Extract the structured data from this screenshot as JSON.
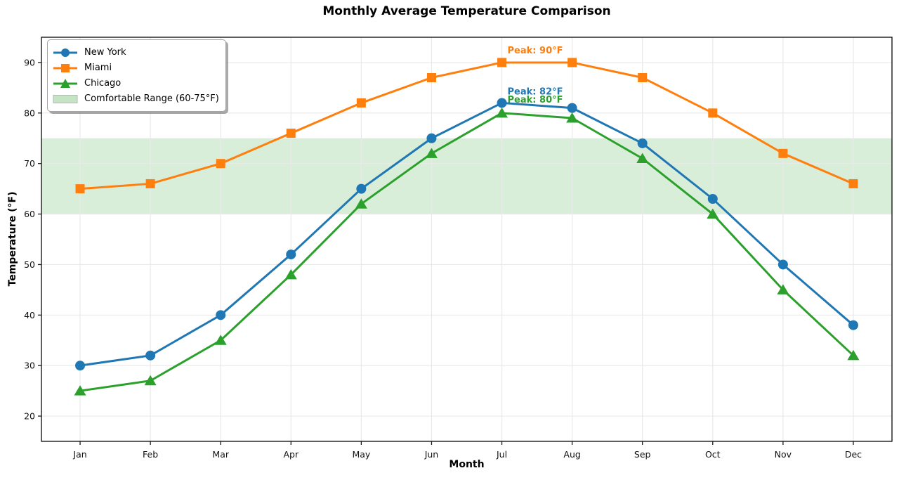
{
  "chart_data": {
    "type": "line",
    "title": "Monthly Average Temperature Comparison",
    "xlabel": "Month",
    "ylabel": "Temperature (°F)",
    "categories": [
      "Jan",
      "Feb",
      "Mar",
      "Apr",
      "May",
      "Jun",
      "Jul",
      "Aug",
      "Sep",
      "Oct",
      "Nov",
      "Dec"
    ],
    "y_ticks": [
      20,
      30,
      40,
      50,
      60,
      70,
      80,
      90
    ],
    "ylim": [
      15,
      95
    ],
    "x_margin": 0.55,
    "grid": true,
    "grid_color": "#e9e9e9",
    "spine_color": "#1a1a1a",
    "tick_label_color": "#111111",
    "series": [
      {
        "name": "New York",
        "color": "#1f77b4",
        "marker": "circle",
        "values": [
          30,
          32,
          40,
          52,
          65,
          75,
          82,
          81,
          74,
          63,
          50,
          38
        ]
      },
      {
        "name": "Miami",
        "color": "#ff7f0e",
        "marker": "square",
        "values": [
          65,
          66,
          70,
          76,
          82,
          87,
          90,
          90,
          87,
          80,
          72,
          66
        ]
      },
      {
        "name": "Chicago",
        "color": "#2ca02c",
        "marker": "triangle",
        "values": [
          25,
          27,
          35,
          48,
          62,
          72,
          80,
          79,
          71,
          60,
          45,
          32
        ]
      }
    ],
    "band": {
      "label": "Comfortable Range (60-75°F)",
      "min": 60,
      "max": 75,
      "color": "#2ca02c",
      "opacity": 0.18
    },
    "annotations": [
      {
        "text": "Peak: 90°F",
        "color": "#ff7f0e",
        "x_index": 6,
        "y_value": 92.4
      },
      {
        "text": "Peak: 82°F",
        "color": "#1f77b4",
        "x_index": 6,
        "y_value": 84.3
      },
      {
        "text": "Peak: 80°F",
        "color": "#2ca02c",
        "x_index": 6,
        "y_value": 82.7
      }
    ],
    "legend": {
      "position": "upper-left",
      "items": [
        "New York",
        "Miami",
        "Chicago",
        "Comfortable Range (60-75°F)"
      ]
    }
  }
}
